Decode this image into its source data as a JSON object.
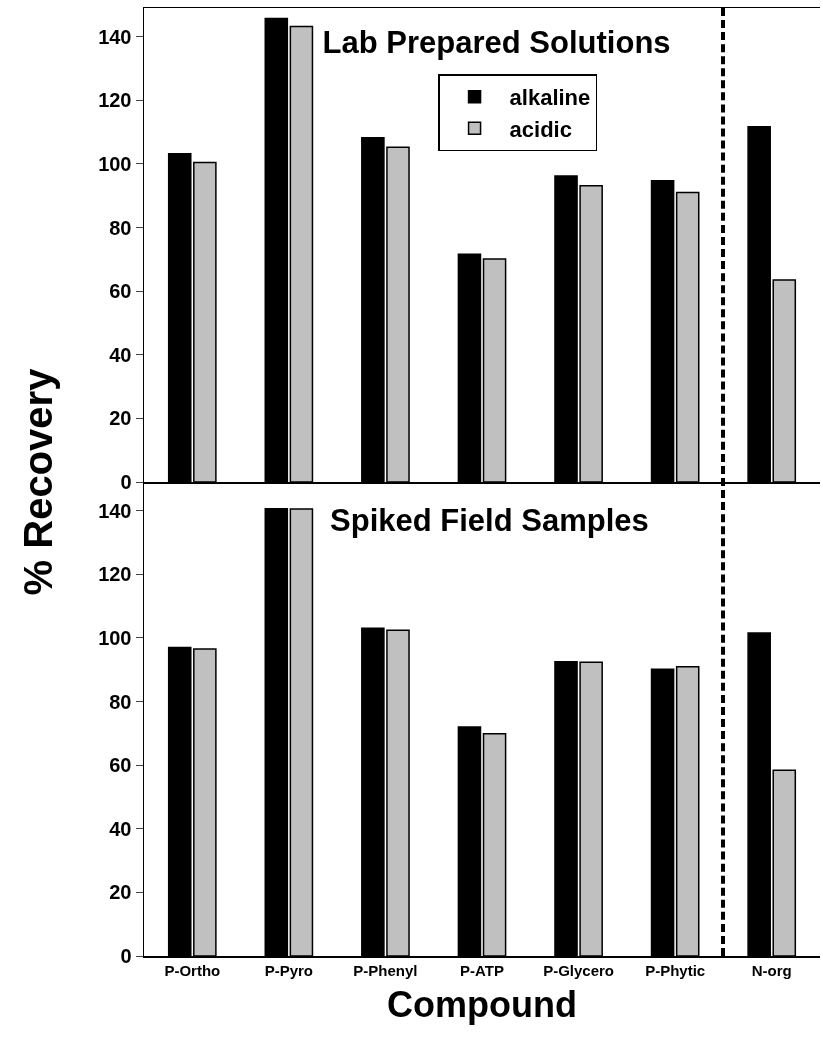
{
  "chart_data": [
    {
      "type": "bar",
      "title": "Lab Prepared Solutions",
      "ylabel": "% Recovery",
      "categories": [
        null,
        null,
        null,
        null,
        null,
        null,
        null
      ],
      "series": [
        {
          "name": "alkaline",
          "color": "#000000",
          "values": [
            103.2,
            145.7,
            108.2,
            71.6,
            96.2,
            94.7,
            111.7
          ]
        },
        {
          "name": "acidic",
          "color": "#c0c0c0",
          "values": [
            100.4,
            143.2,
            105.2,
            70.1,
            93.1,
            91.0,
            63.5
          ]
        }
      ],
      "ylim": [
        0,
        149
      ],
      "yticks": [
        0,
        20,
        40,
        60,
        80,
        100,
        120,
        140
      ],
      "tick_labels": "y",
      "grid": false,
      "legend": "top"
    },
    {
      "type": "bar",
      "title": "Spiked Field Samples",
      "xlabel": "Compound",
      "categories": [
        "P-Ortho",
        "P-Pyro",
        "P-Phenyl",
        "P-ATP",
        "P-Glycero",
        "P-Phytic",
        "N-org"
      ],
      "series": [
        {
          "color": "#000000",
          "values": [
            97.0,
            140.6,
            103.0,
            72.0,
            92.5,
            90.1,
            101.5
          ]
        },
        {
          "color": "#c0c0c0",
          "values": [
            96.5,
            140.5,
            102.4,
            69.9,
            92.3,
            90.9,
            58.4
          ]
        }
      ],
      "ylim": [
        0,
        149
      ],
      "yticks": [
        0,
        20,
        40,
        60,
        80,
        100,
        120,
        140
      ],
      "grid": false,
      "legend": false
    }
  ]
}
